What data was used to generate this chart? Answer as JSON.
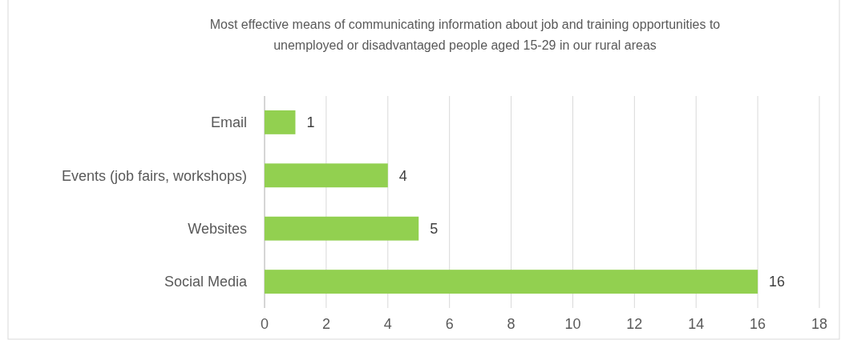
{
  "chart_data": {
    "type": "bar",
    "orientation": "horizontal",
    "title": "Most effective means of communicating information about job and training opportunities to unemployed or disadvantaged people aged 15-29 in our rural areas",
    "categories": [
      "Email",
      "Events (job fairs, workshops)",
      "Websites",
      "Social Media"
    ],
    "values": [
      1,
      4,
      5,
      16
    ],
    "color": "#92d050",
    "xlim": [
      0,
      18
    ],
    "xticks": [
      0,
      2,
      4,
      6,
      8,
      10,
      12,
      14,
      16,
      18
    ],
    "grid": "x",
    "data_labels": true
  }
}
